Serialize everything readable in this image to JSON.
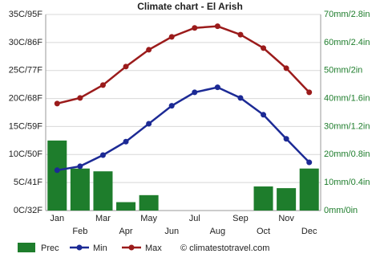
{
  "chart_data": {
    "type": "bar-line",
    "title": "Climate chart - El Arish",
    "categories": [
      "Jan",
      "Feb",
      "Mar",
      "Apr",
      "May",
      "Jun",
      "Jul",
      "Aug",
      "Sep",
      "Oct",
      "Nov",
      "Dec"
    ],
    "series": [
      {
        "name": "Prec",
        "type": "bar",
        "axis": "y2",
        "color": "#1e7d2c",
        "values": [
          25,
          15,
          14,
          3,
          5.5,
          0,
          0,
          0,
          0,
          8.6,
          8,
          15
        ]
      },
      {
        "name": "Min",
        "type": "line",
        "color": "#1c2a95",
        "values": [
          7.2,
          7.9,
          9.9,
          12.3,
          15.5,
          18.7,
          21.1,
          22.0,
          20.1,
          17.1,
          12.8,
          8.6
        ]
      },
      {
        "name": "Max",
        "type": "line",
        "color": "#9b1b1b",
        "values": [
          19.1,
          20.1,
          22.4,
          25.7,
          28.7,
          31.0,
          32.6,
          32.9,
          31.4,
          29.0,
          25.4,
          21.1
        ]
      }
    ],
    "ylim": [
      0,
      35
    ],
    "yticks": [
      {
        "value": 0,
        "label": "0C/32F"
      },
      {
        "value": 5,
        "label": "5C/41F"
      },
      {
        "value": 10,
        "label": "10C/50F"
      },
      {
        "value": 15,
        "label": "15C/59F"
      },
      {
        "value": 20,
        "label": "20C/68F"
      },
      {
        "value": 25,
        "label": "25C/77F"
      },
      {
        "value": 30,
        "label": "30C/86F"
      },
      {
        "value": 35,
        "label": "35C/95F"
      }
    ],
    "y2lim": [
      0,
      70
    ],
    "y2ticks": [
      {
        "value": 0,
        "label": "0mm/0in"
      },
      {
        "value": 10,
        "label": "10mm/0.4in"
      },
      {
        "value": 20,
        "label": "20mm/0.8in"
      },
      {
        "value": 30,
        "label": "30mm/1.2in"
      },
      {
        "value": 40,
        "label": "40mm/1.6in"
      },
      {
        "value": 50,
        "label": "50mm/2in"
      },
      {
        "value": 60,
        "label": "60mm/2.4in"
      },
      {
        "value": 70,
        "label": "70mm/2.8in"
      }
    ],
    "grid": true,
    "legend": "bottom",
    "credit": "© climatestotravel.com"
  }
}
